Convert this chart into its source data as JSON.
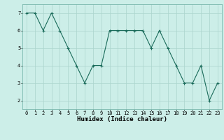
{
  "x": [
    0,
    1,
    2,
    3,
    4,
    5,
    6,
    7,
    8,
    9,
    10,
    11,
    12,
    13,
    14,
    15,
    16,
    17,
    18,
    19,
    20,
    21,
    22,
    23
  ],
  "y": [
    7,
    7,
    6,
    7,
    6,
    5,
    4,
    3,
    4,
    4,
    6,
    6,
    6,
    6,
    6,
    5,
    6,
    5,
    4,
    3,
    3,
    4,
    2,
    3
  ],
  "line_color": "#1a6b5a",
  "marker": "+",
  "marker_color": "#1a6b5a",
  "bg_color": "#cceee8",
  "grid_color": "#aad4cc",
  "xlabel": "Humidex (Indice chaleur)",
  "ylim": [
    1.5,
    7.5
  ],
  "xlim": [
    -0.5,
    23.5
  ],
  "yticks": [
    2,
    3,
    4,
    5,
    6,
    7
  ],
  "xticks": [
    0,
    1,
    2,
    3,
    4,
    5,
    6,
    7,
    8,
    9,
    10,
    11,
    12,
    13,
    14,
    15,
    16,
    17,
    18,
    19,
    20,
    21,
    22,
    23
  ],
  "tick_fontsize": 5.0,
  "xlabel_fontsize": 6.5,
  "linewidth": 0.8,
  "markersize": 2.5,
  "figwidth": 3.2,
  "figheight": 2.0,
  "dpi": 100
}
